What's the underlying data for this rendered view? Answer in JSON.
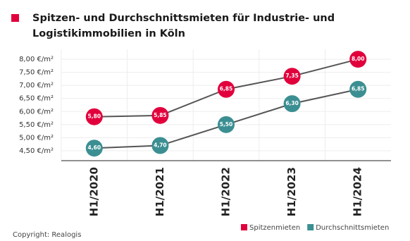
{
  "chart_data": {
    "type": "line",
    "title": [
      "Spitzen- und Durchschnittsmieten für Industrie- und",
      "Logistikimmobilien in Köln"
    ],
    "source": "Copyright: Realogis",
    "categories": [
      "H1/2020",
      "H1/2021",
      "H1/2022",
      "H1/2023",
      "H1/2024"
    ],
    "series": [
      {
        "name": "Spitzenmieten",
        "color": "#e2003c",
        "values": [
          5.8,
          5.85,
          6.85,
          7.35,
          8.0
        ],
        "value_labels": [
          "5,80",
          "5,85",
          "6,85",
          "7,35",
          "8,00"
        ]
      },
      {
        "name": "Durchschnittsmieten",
        "color": "#3b8f92",
        "values": [
          4.6,
          4.7,
          5.5,
          6.3,
          6.85
        ],
        "value_labels": [
          "4,60",
          "4,70",
          "5,50",
          "6,30",
          "6,85"
        ]
      }
    ],
    "line_color": "#555555",
    "ylim": [
      4.12,
      8.38
    ],
    "yticks": [
      {
        "value": 4.5,
        "label": "4,50 €/m²"
      },
      {
        "value": 5,
        "label": "5,00 €/m²"
      },
      {
        "value": 5.5,
        "label": "5,50 €/m²"
      },
      {
        "value": 6,
        "label": "6,00 €/m²"
      },
      {
        "value": 6.5,
        "label": "6,50 €/m²"
      },
      {
        "value": 7,
        "label": "7,00 €/m²"
      },
      {
        "value": 7.5,
        "label": "7,50 €/m²"
      },
      {
        "value": 8,
        "label": "8,00 €/m²"
      }
    ],
    "grid": true
  }
}
